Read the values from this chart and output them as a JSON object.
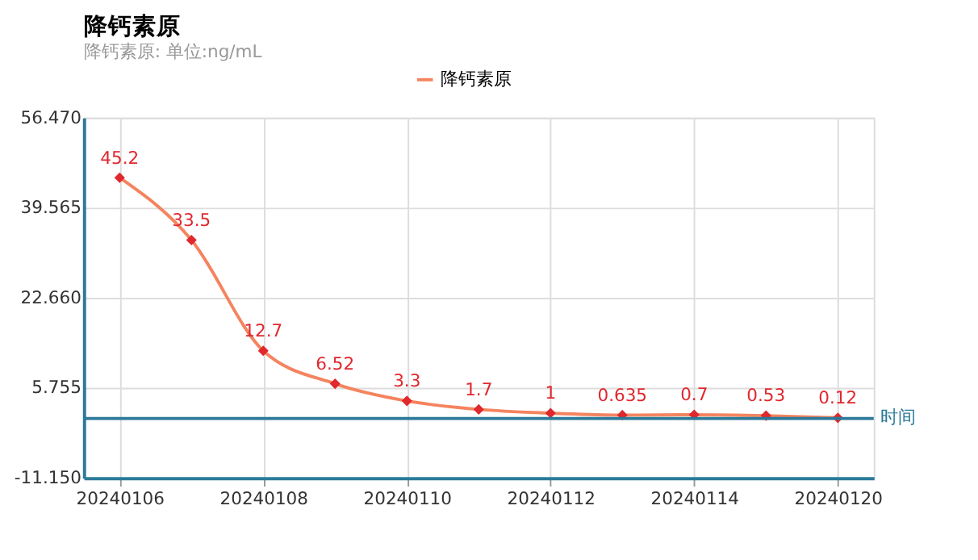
{
  "chart_data": {
    "type": "line",
    "title": "降钙素原",
    "subtitle": "降钙素原: 单位:ng/mL",
    "xlabel": "时间",
    "categories": [
      "20240106",
      null,
      "20240108",
      null,
      "20240110",
      null,
      "20240112",
      null,
      "20240114",
      null,
      "20240120"
    ],
    "series": [
      {
        "name": "降钙素原",
        "color": "#f4845f",
        "colors": [
          "#e0282e",
          "#e0282e",
          "#e0282e",
          "#e0282e",
          "#e0282e",
          "#e0282e",
          "#e0282e",
          "#e0282e",
          "#e0282e",
          "#e0282e",
          "#e0282e"
        ],
        "values": [
          45.2,
          33.5,
          12.7,
          6.52,
          3.3,
          1.7,
          1,
          0.635,
          0.7,
          0.53,
          0.12
        ]
      }
    ],
    "ylim": [
      -11.15,
      56.47
    ],
    "yticks": [
      {
        "value": -11.15,
        "label": "-11.150"
      },
      {
        "value": 5.755,
        "label": "5.755"
      },
      {
        "value": 22.66,
        "label": "22.660"
      },
      {
        "value": 39.565,
        "label": "39.565"
      },
      {
        "value": 56.47,
        "label": "56.470"
      }
    ],
    "ref_lines": [
      {
        "axis": "y",
        "value": 0,
        "color": "#2b7a99"
      }
    ],
    "data_labels": true,
    "grid": true,
    "legend": "top",
    "marker": "diamond",
    "line_style": "solid"
  }
}
